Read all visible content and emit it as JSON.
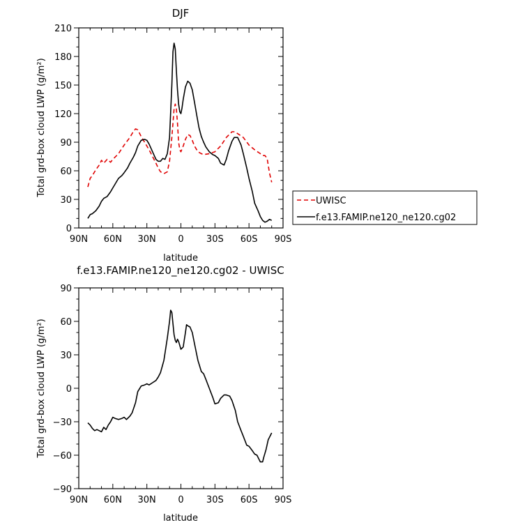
{
  "chart_data": [
    {
      "type": "line",
      "title": "DJF",
      "xlabel": "latitude",
      "ylabel": "Total grd-box cloud LWP (g/m²)",
      "xlim": [
        90,
        -90
      ],
      "ylim": [
        0,
        210
      ],
      "xticks": [
        90,
        60,
        30,
        0,
        -30,
        -60,
        -90
      ],
      "xtick_labels": [
        "90N",
        "60N",
        "30N",
        "0",
        "30S",
        "60S",
        "90S"
      ],
      "yticks": [
        0,
        30,
        60,
        90,
        120,
        150,
        180,
        210
      ],
      "ytick_labels": [
        "0",
        "30",
        "60",
        "90",
        "120",
        "150",
        "180",
        "210"
      ],
      "legend_position": "right",
      "series": [
        {
          "name": "UWISC",
          "color": "#e00000",
          "dash": "dashed",
          "x": [
            82,
            80,
            78,
            75,
            72,
            70,
            68,
            65,
            62,
            60,
            55,
            50,
            45,
            42,
            40,
            38,
            35,
            32,
            30,
            28,
            25,
            22,
            20,
            18,
            15,
            12,
            10,
            8,
            6,
            5,
            4,
            3,
            2,
            1,
            0,
            -2,
            -4,
            -6,
            -8,
            -10,
            -12,
            -15,
            -18,
            -20,
            -25,
            -30,
            -35,
            -40,
            -45,
            -48,
            -50,
            -55,
            -60,
            -65,
            -70,
            -72,
            -74,
            -76,
            -78,
            -80
          ],
          "values": [
            43,
            52,
            55,
            61,
            66,
            71,
            68,
            72,
            69,
            72,
            78,
            87,
            95,
            101,
            104,
            103,
            96,
            90,
            86,
            82,
            75,
            68,
            63,
            59,
            57,
            59,
            70,
            95,
            125,
            130,
            125,
            110,
            90,
            82,
            80,
            86,
            93,
            98,
            97,
            92,
            86,
            80,
            78,
            77,
            78,
            80,
            86,
            95,
            101,
            101,
            99,
            95,
            87,
            82,
            78,
            76,
            76,
            73,
            58,
            48
          ]
        },
        {
          "name": "f.e13.FAMIP.ne120_ne120.cg02",
          "color": "#000000",
          "dash": "solid",
          "x": [
            82,
            80,
            78,
            75,
            72,
            70,
            68,
            65,
            62,
            60,
            57,
            55,
            52,
            50,
            47,
            45,
            42,
            40,
            38,
            35,
            32,
            30,
            28,
            25,
            22,
            20,
            18,
            16,
            14,
            12,
            10,
            8,
            7,
            6,
            5,
            4,
            3,
            2,
            1,
            0,
            -1,
            -2,
            -4,
            -6,
            -8,
            -10,
            -12,
            -14,
            -16,
            -18,
            -20,
            -22,
            -25,
            -28,
            -30,
            -33,
            -35,
            -38,
            -40,
            -42,
            -45,
            -47,
            -50,
            -53,
            -55,
            -58,
            -60,
            -63,
            -65,
            -68,
            -70,
            -72,
            -74,
            -76,
            -78,
            -80
          ],
          "values": [
            10,
            14,
            15,
            18,
            23,
            28,
            31,
            33,
            38,
            42,
            48,
            52,
            55,
            58,
            63,
            68,
            74,
            79,
            86,
            92,
            93,
            92,
            88,
            80,
            72,
            70,
            70,
            73,
            72,
            78,
            95,
            150,
            185,
            194,
            188,
            165,
            145,
            130,
            122,
            120,
            126,
            135,
            148,
            154,
            152,
            145,
            132,
            118,
            105,
            96,
            90,
            85,
            80,
            77,
            76,
            73,
            68,
            66,
            72,
            81,
            91,
            95,
            95,
            87,
            78,
            63,
            52,
            38,
            26,
            18,
            12,
            8,
            6,
            7,
            9,
            8
          ]
        }
      ]
    },
    {
      "type": "line",
      "title": "f.e13.FAMIP.ne120_ne120.cg02 - UWISC",
      "xlabel": "latitude",
      "ylabel": "Total grd-box cloud LWP (g/m²)",
      "xlim": [
        90,
        -90
      ],
      "ylim": [
        -90,
        90
      ],
      "xticks": [
        90,
        60,
        30,
        0,
        -30,
        -60,
        -90
      ],
      "xtick_labels": [
        "90N",
        "60N",
        "30N",
        "0",
        "30S",
        "60S",
        "90S"
      ],
      "yticks": [
        -90,
        -60,
        -30,
        0,
        30,
        60,
        90
      ],
      "ytick_labels": [
        "−90",
        "−60",
        "−30",
        "0",
        "30",
        "60",
        "90"
      ],
      "series": [
        {
          "name": "f.e13.FAMIP.ne120_ne120.cg02 - UWISC",
          "color": "#000000",
          "dash": "solid",
          "x": [
            82,
            80,
            78,
            76,
            74,
            72,
            70,
            68,
            66,
            64,
            62,
            60,
            58,
            55,
            52,
            50,
            48,
            45,
            43,
            40,
            38,
            35,
            32,
            30,
            28,
            25,
            22,
            20,
            18,
            15,
            12,
            10,
            9,
            8,
            7,
            6,
            5,
            4,
            3,
            2,
            0,
            -2,
            -4,
            -5,
            -6,
            -8,
            -10,
            -12,
            -15,
            -18,
            -20,
            -22,
            -25,
            -28,
            -30,
            -33,
            -35,
            -38,
            -40,
            -43,
            -45,
            -48,
            -50,
            -53,
            -55,
            -58,
            -60,
            -63,
            -65,
            -67,
            -70,
            -72,
            -73,
            -75,
            -77,
            -78,
            -80
          ],
          "values": [
            -31,
            -33,
            -36,
            -38,
            -37,
            -38,
            -39,
            -35,
            -37,
            -33,
            -30,
            -26,
            -27,
            -28,
            -27,
            -26,
            -28,
            -25,
            -22,
            -13,
            -3,
            2,
            3,
            4,
            3,
            5,
            7,
            10,
            14,
            25,
            45,
            60,
            70,
            68,
            58,
            48,
            43,
            41,
            44,
            42,
            35,
            37,
            50,
            57,
            56,
            55,
            50,
            40,
            25,
            15,
            13,
            8,
            0,
            -8,
            -14,
            -13,
            -9,
            -6,
            -6,
            -7,
            -11,
            -20,
            -30,
            -38,
            -43,
            -51,
            -52,
            -56,
            -59,
            -60,
            -66,
            -66,
            -62,
            -55,
            -46,
            -44,
            -40
          ]
        }
      ]
    }
  ]
}
